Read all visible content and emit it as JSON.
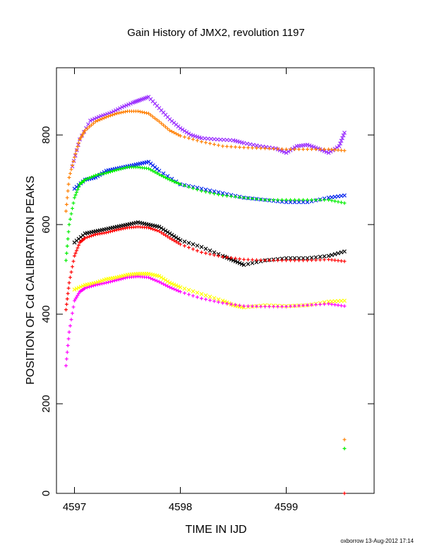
{
  "chart_data": {
    "type": "scatter",
    "title": "Gain History of JMX2, revolution 1197",
    "xlabel": "TIME IN IJD",
    "ylabel": "POSITION OF Cd CALIBRATION PEAKS",
    "xlim": [
      4596.83,
      4599.83
    ],
    "ylim": [
      0,
      950
    ],
    "xticks": [
      4597,
      4598,
      4599
    ],
    "yticks": [
      0,
      200,
      400,
      600,
      800
    ],
    "grid": false,
    "credit": "oxborrow 13-Aug-2012 17:14",
    "series": [
      {
        "color": "#9b30ff",
        "marker": "x",
        "x": [
          4596.98,
          4597.05,
          4597.15,
          4597.25,
          4597.35,
          4597.45,
          4597.55,
          4597.62,
          4597.7,
          4597.8,
          4597.9,
          4598.0,
          4598.1,
          4598.2,
          4598.35,
          4598.5,
          4598.6,
          4598.75,
          4598.9,
          4599.0,
          4599.1,
          4599.2,
          4599.3,
          4599.4,
          4599.5,
          4599.55
        ],
        "y": [
          730,
          790,
          832,
          842,
          850,
          862,
          872,
          878,
          885,
          860,
          835,
          815,
          800,
          793,
          790,
          788,
          782,
          775,
          770,
          760,
          775,
          778,
          770,
          760,
          775,
          805
        ]
      },
      {
        "color": "#ff7f00",
        "marker": "+",
        "x": [
          4596.92,
          4596.95,
          4597.0,
          4597.05,
          4597.1,
          4597.2,
          4597.3,
          4597.4,
          4597.5,
          4597.6,
          4597.7,
          4597.8,
          4597.9,
          4598.0,
          4598.2,
          4598.4,
          4598.6,
          4598.8,
          4599.0,
          4599.2,
          4599.4,
          4599.55
        ],
        "y": [
          630,
          705,
          750,
          790,
          810,
          830,
          840,
          848,
          853,
          853,
          848,
          830,
          810,
          798,
          785,
          775,
          772,
          770,
          768,
          768,
          768,
          765
        ]
      },
      {
        "color": "#0022ee",
        "marker": "x",
        "x": [
          4597.0,
          4597.1,
          4597.2,
          4597.3,
          4597.4,
          4597.5,
          4597.6,
          4597.7,
          4597.8,
          4598.0,
          4598.2,
          4598.4,
          4598.6,
          4598.8,
          4599.0,
          4599.2,
          4599.4,
          4599.55
        ],
        "y": [
          680,
          700,
          705,
          720,
          725,
          730,
          735,
          740,
          720,
          690,
          680,
          670,
          660,
          655,
          650,
          650,
          660,
          665
        ]
      },
      {
        "color": "#00ee00",
        "marker": "+",
        "x": [
          4596.92,
          4596.95,
          4597.0,
          4597.05,
          4597.1,
          4597.2,
          4597.3,
          4597.4,
          4597.5,
          4597.6,
          4597.7,
          4597.8,
          4597.9,
          4598.0,
          4598.2,
          4598.4,
          4598.6,
          4598.8,
          4599.0,
          4599.2,
          4599.4,
          4599.55
        ],
        "y": [
          520,
          600,
          660,
          690,
          700,
          710,
          715,
          722,
          728,
          728,
          725,
          712,
          700,
          690,
          675,
          665,
          660,
          655,
          655,
          655,
          655,
          648
        ]
      },
      {
        "color": "#000000",
        "marker": "x",
        "x": [
          4597.0,
          4597.1,
          4597.2,
          4597.3,
          4597.4,
          4597.5,
          4597.6,
          4597.7,
          4597.8,
          4597.9,
          4598.0,
          4598.2,
          4598.4,
          4598.5,
          4598.6,
          4598.8,
          4599.0,
          4599.2,
          4599.4,
          4599.55
        ],
        "y": [
          560,
          580,
          585,
          590,
          595,
          600,
          605,
          600,
          595,
          580,
          565,
          550,
          530,
          520,
          510,
          520,
          525,
          525,
          530,
          540
        ]
      },
      {
        "color": "#ff0000",
        "marker": "+",
        "x": [
          4596.92,
          4596.95,
          4597.0,
          4597.05,
          4597.1,
          4597.2,
          4597.3,
          4597.4,
          4597.5,
          4597.6,
          4597.7,
          4597.8,
          4597.9,
          4598.0,
          4598.2,
          4598.4,
          4598.6,
          4598.8,
          4599.0,
          4599.2,
          4599.4,
          4599.55
        ],
        "y": [
          410,
          470,
          530,
          560,
          570,
          578,
          582,
          588,
          593,
          595,
          593,
          585,
          570,
          556,
          538,
          528,
          522,
          520,
          520,
          520,
          522,
          518
        ]
      },
      {
        "color": "#ffff00",
        "marker": "x",
        "x": [
          4597.0,
          4597.1,
          4597.2,
          4597.3,
          4597.4,
          4597.5,
          4597.6,
          4597.7,
          4597.8,
          4597.9,
          4598.0,
          4598.2,
          4598.4,
          4598.5,
          4598.6,
          4598.8,
          4599.0,
          4599.2,
          4599.4,
          4599.55
        ],
        "y": [
          455,
          465,
          470,
          478,
          482,
          488,
          490,
          490,
          485,
          470,
          460,
          445,
          430,
          420,
          415,
          420,
          418,
          420,
          428,
          430
        ]
      },
      {
        "color": "#ff00ff",
        "marker": "+",
        "x": [
          4596.92,
          4596.95,
          4597.0,
          4597.05,
          4597.1,
          4597.2,
          4597.3,
          4597.4,
          4597.5,
          4597.6,
          4597.7,
          4597.8,
          4597.9,
          4598.0,
          4598.2,
          4598.4,
          4598.6,
          4598.8,
          4599.0,
          4599.2,
          4599.4,
          4599.55
        ],
        "y": [
          285,
          360,
          430,
          450,
          458,
          465,
          470,
          476,
          482,
          484,
          482,
          472,
          460,
          450,
          435,
          425,
          418,
          417,
          417,
          420,
          423,
          418
        ]
      },
      {
        "color": "#ff7f00",
        "marker": "+",
        "x": [
          4599.55
        ],
        "y": [
          120
        ]
      },
      {
        "color": "#00ee00",
        "marker": "+",
        "x": [
          4599.55
        ],
        "y": [
          100
        ]
      },
      {
        "color": "#ff0000",
        "marker": "+",
        "x": [
          4599.55
        ],
        "y": [
          0
        ]
      }
    ]
  }
}
